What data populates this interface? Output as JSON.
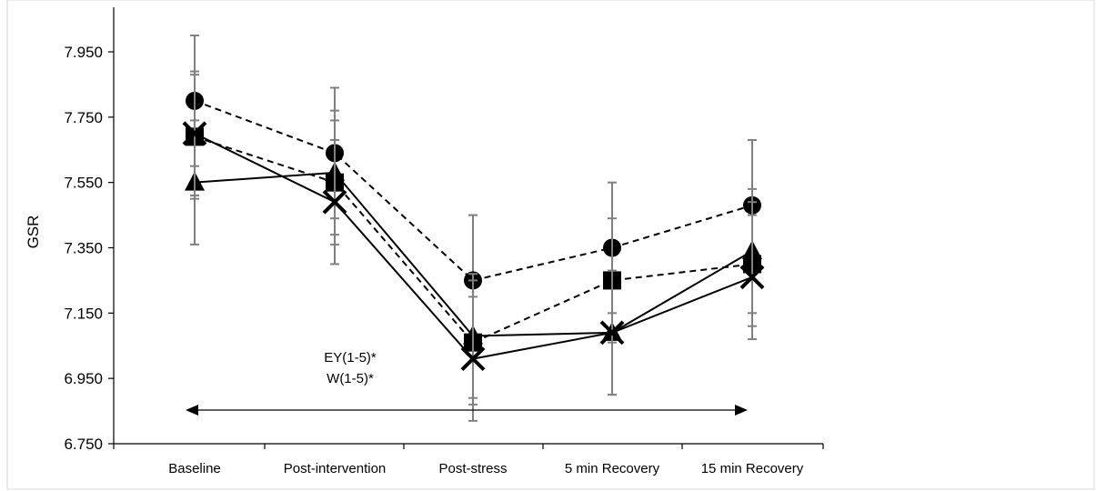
{
  "chart_data": {
    "type": "line",
    "title": "",
    "xlabel": "",
    "ylabel": "GSR",
    "ylim": [
      6.75,
      8.05
    ],
    "yticks": [
      "7.950",
      "7.750",
      "7.550",
      "7.350",
      "7.150",
      "6.950",
      "6.750"
    ],
    "grid": false,
    "categories": [
      "Baseline",
      "Post-intervention",
      "Post-stress",
      "5 min Recovery",
      "15 min Recovery"
    ],
    "series": [
      {
        "marker": "circle",
        "line": "dashed",
        "values": [
          7.8,
          7.64,
          7.25,
          7.35,
          7.48
        ],
        "error": [
          0.2,
          0.2,
          0.2,
          0.2,
          0.2
        ]
      },
      {
        "marker": "square",
        "line": "dashed",
        "values": [
          7.69,
          7.55,
          7.06,
          7.25,
          7.3
        ],
        "error": [
          0.19,
          0.19,
          0.19,
          0.19,
          0.19
        ]
      },
      {
        "marker": "triangle",
        "line": "solid",
        "values": [
          7.55,
          7.58,
          7.08,
          7.09,
          7.34
        ],
        "error": [
          0.19,
          0.19,
          0.19,
          0.19,
          0.19
        ]
      },
      {
        "marker": "x",
        "line": "solid",
        "values": [
          7.7,
          7.49,
          7.01,
          7.09,
          7.26
        ],
        "error": [
          0.19,
          0.19,
          0.19,
          0.19,
          0.19
        ]
      }
    ],
    "annotations": [
      "EY(1-5)*",
      "W(1-5)*"
    ],
    "arrow_range": [
      "Baseline",
      "15 min Recovery"
    ]
  }
}
